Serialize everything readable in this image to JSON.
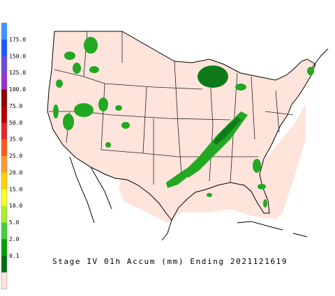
{
  "caption": "Stage IV 01h Accum (mm) Ending 2021121619",
  "legend": {
    "labels": [
      "175.0",
      "150.0",
      "125.0",
      "100.0",
      "75.0",
      "50.0",
      "35.0",
      "25.0",
      "20.0",
      "15.0",
      "10.0",
      "5.0",
      "2.0",
      "0.1"
    ],
    "colors": [
      "#3c96ff",
      "#1a5cff",
      "#6a4cd8",
      "#9a30d0",
      "#8b0000",
      "#b40000",
      "#e02828",
      "#ff5a1e",
      "#ff9a30",
      "#ffd200",
      "#ffff28",
      "#a8f028",
      "#3cd23c",
      "#00a000",
      "#006e14",
      "#ffe4dc"
    ]
  }
}
